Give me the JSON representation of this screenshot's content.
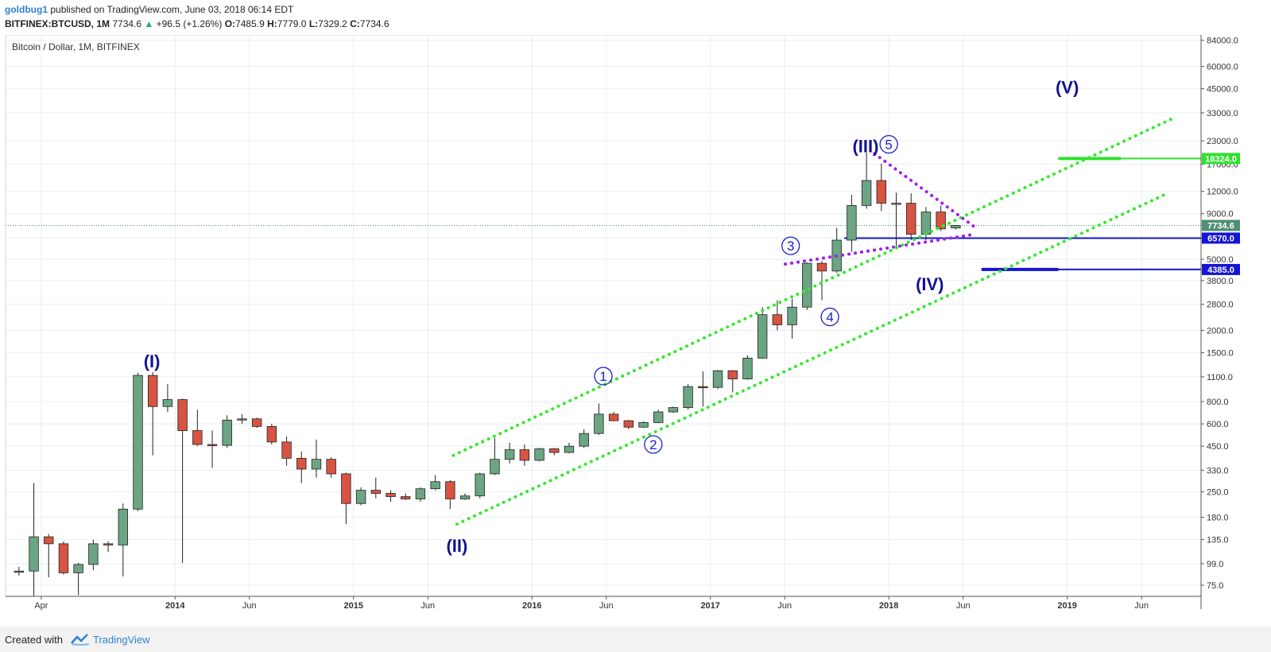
{
  "header": {
    "author": "goldbug1",
    "published": "published on TradingView.com, June 03, 2018 06:14 EDT",
    "symbol": "BITFINEX:BTCUSD, 1M",
    "last": "7734.6",
    "change": "+96.5 (+1.26%)",
    "o_label": "O:",
    "o_value": "7485.9",
    "h_label": "H:",
    "h_value": "7779.0",
    "l_label": "L:",
    "l_value": "7329.2",
    "c_label": "C:",
    "c_value": "7734.6"
  },
  "footer": {
    "created_with": "Created with",
    "brand": "TradingView"
  },
  "chart_data": {
    "type": "candlestick",
    "title": "Bitcoin / Dollar, 1M, BITFINEX",
    "scale": "log",
    "ylim": [
      65,
      90000
    ],
    "yticks": [
      75,
      99,
      135,
      180,
      250,
      330,
      450,
      600,
      800,
      1100,
      1500,
      2000,
      2800,
      3800,
      5000,
      6570,
      9000,
      12000,
      17000,
      23000,
      33000,
      45000,
      60000,
      84000
    ],
    "ytick_labels": [
      "75.0",
      "99.0",
      "135.0",
      "180.0",
      "250.0",
      "330.0",
      "450.0",
      "600.0",
      "800.0",
      "1100.0",
      "1500.0",
      "2000.0",
      "2800.0",
      "3800.0",
      "5000.0",
      "6570.0",
      "9000.0",
      "12000.0",
      "17000.0",
      "23000.0",
      "33000.0",
      "45000.0",
      "60000.0",
      "84000.0"
    ],
    "xrange": [
      2013.05,
      2019.75
    ],
    "xticks": [
      {
        "x": 2013.25,
        "label": "Apr",
        "bold": false
      },
      {
        "x": 2014.0,
        "label": "2014",
        "bold": true
      },
      {
        "x": 2014.4167,
        "label": "Jun",
        "bold": false
      },
      {
        "x": 2015.0,
        "label": "2015",
        "bold": true
      },
      {
        "x": 2015.4167,
        "label": "Jun",
        "bold": false
      },
      {
        "x": 2016.0,
        "label": "2016",
        "bold": true
      },
      {
        "x": 2016.4167,
        "label": "Jun",
        "bold": false
      },
      {
        "x": 2017.0,
        "label": "2017",
        "bold": true
      },
      {
        "x": 2017.4167,
        "label": "Jun",
        "bold": false
      },
      {
        "x": 2018.0,
        "label": "2018",
        "bold": true
      },
      {
        "x": 2018.4167,
        "label": "Jun",
        "bold": false
      },
      {
        "x": 2019.0,
        "label": "2019",
        "bold": true
      },
      {
        "x": 2019.4167,
        "label": "Jun",
        "bold": false
      }
    ],
    "candles": [
      {
        "t": "2013-02",
        "o": 90,
        "h": 95,
        "l": 85,
        "c": 90
      },
      {
        "t": "2013-03",
        "o": 90,
        "h": 280,
        "l": 65,
        "c": 140
      },
      {
        "t": "2013-04",
        "o": 140,
        "h": 145,
        "l": 83,
        "c": 128
      },
      {
        "t": "2013-05",
        "o": 128,
        "h": 132,
        "l": 86,
        "c": 88
      },
      {
        "t": "2013-06",
        "o": 88,
        "h": 100,
        "l": 66,
        "c": 98
      },
      {
        "t": "2013-07",
        "o": 98,
        "h": 135,
        "l": 91,
        "c": 128
      },
      {
        "t": "2013-08",
        "o": 128,
        "h": 132,
        "l": 115,
        "c": 126
      },
      {
        "t": "2013-09",
        "o": 126,
        "h": 215,
        "l": 84,
        "c": 200
      },
      {
        "t": "2013-10",
        "o": 200,
        "h": 1160,
        "l": 195,
        "c": 1120
      },
      {
        "t": "2013-11",
        "o": 1120,
        "h": 1170,
        "l": 400,
        "c": 750
      },
      {
        "t": "2013-12",
        "o": 750,
        "h": 1000,
        "l": 700,
        "c": 820
      },
      {
        "t": "2014-01",
        "o": 820,
        "h": 830,
        "l": 100,
        "c": 550
      },
      {
        "t": "2014-02",
        "o": 550,
        "h": 720,
        "l": 450,
        "c": 460
      },
      {
        "t": "2014-03",
        "o": 460,
        "h": 550,
        "l": 340,
        "c": 455
      },
      {
        "t": "2014-04",
        "o": 455,
        "h": 670,
        "l": 440,
        "c": 630
      },
      {
        "t": "2014-05",
        "o": 630,
        "h": 680,
        "l": 600,
        "c": 640
      },
      {
        "t": "2014-06",
        "o": 640,
        "h": 650,
        "l": 570,
        "c": 580
      },
      {
        "t": "2014-07",
        "o": 580,
        "h": 600,
        "l": 460,
        "c": 475
      },
      {
        "t": "2014-08",
        "o": 475,
        "h": 510,
        "l": 350,
        "c": 385
      },
      {
        "t": "2014-09",
        "o": 385,
        "h": 420,
        "l": 280,
        "c": 335
      },
      {
        "t": "2014-10",
        "o": 335,
        "h": 490,
        "l": 300,
        "c": 380
      },
      {
        "t": "2014-11",
        "o": 380,
        "h": 390,
        "l": 300,
        "c": 315
      },
      {
        "t": "2014-12",
        "o": 315,
        "h": 320,
        "l": 165,
        "c": 215
      },
      {
        "t": "2015-01",
        "o": 215,
        "h": 265,
        "l": 210,
        "c": 255
      },
      {
        "t": "2015-02",
        "o": 255,
        "h": 300,
        "l": 230,
        "c": 245
      },
      {
        "t": "2015-03",
        "o": 245,
        "h": 255,
        "l": 220,
        "c": 235
      },
      {
        "t": "2015-04",
        "o": 235,
        "h": 245,
        "l": 225,
        "c": 228
      },
      {
        "t": "2015-05",
        "o": 228,
        "h": 265,
        "l": 220,
        "c": 260
      },
      {
        "t": "2015-06",
        "o": 260,
        "h": 310,
        "l": 255,
        "c": 285
      },
      {
        "t": "2015-07",
        "o": 285,
        "h": 290,
        "l": 200,
        "c": 228
      },
      {
        "t": "2015-08",
        "o": 228,
        "h": 245,
        "l": 225,
        "c": 237
      },
      {
        "t": "2015-09",
        "o": 237,
        "h": 320,
        "l": 230,
        "c": 315
      },
      {
        "t": "2015-10",
        "o": 315,
        "h": 500,
        "l": 310,
        "c": 380
      },
      {
        "t": "2015-11",
        "o": 380,
        "h": 470,
        "l": 360,
        "c": 430
      },
      {
        "t": "2015-12",
        "o": 430,
        "h": 460,
        "l": 350,
        "c": 375
      },
      {
        "t": "2016-01",
        "o": 375,
        "h": 440,
        "l": 370,
        "c": 435
      },
      {
        "t": "2016-02",
        "o": 435,
        "h": 440,
        "l": 400,
        "c": 415
      },
      {
        "t": "2016-03",
        "o": 415,
        "h": 470,
        "l": 410,
        "c": 450
      },
      {
        "t": "2016-04",
        "o": 450,
        "h": 560,
        "l": 440,
        "c": 530
      },
      {
        "t": "2016-05",
        "o": 530,
        "h": 780,
        "l": 520,
        "c": 680
      },
      {
        "t": "2016-06",
        "o": 680,
        "h": 700,
        "l": 620,
        "c": 625
      },
      {
        "t": "2016-07",
        "o": 625,
        "h": 630,
        "l": 560,
        "c": 575
      },
      {
        "t": "2016-08",
        "o": 575,
        "h": 620,
        "l": 570,
        "c": 610
      },
      {
        "t": "2016-09",
        "o": 610,
        "h": 720,
        "l": 605,
        "c": 700
      },
      {
        "t": "2016-10",
        "o": 700,
        "h": 750,
        "l": 690,
        "c": 740
      },
      {
        "t": "2016-11",
        "o": 740,
        "h": 1000,
        "l": 720,
        "c": 970
      },
      {
        "t": "2016-12",
        "o": 970,
        "h": 1180,
        "l": 750,
        "c": 960
      },
      {
        "t": "2017-01",
        "o": 960,
        "h": 1200,
        "l": 940,
        "c": 1190
      },
      {
        "t": "2017-02",
        "o": 1190,
        "h": 1200,
        "l": 900,
        "c": 1070
      },
      {
        "t": "2017-03",
        "o": 1070,
        "h": 1450,
        "l": 1060,
        "c": 1400
      },
      {
        "t": "2017-04",
        "o": 1400,
        "h": 2700,
        "l": 1390,
        "c": 2450
      },
      {
        "t": "2017-05",
        "o": 2450,
        "h": 2950,
        "l": 2000,
        "c": 2150
      },
      {
        "t": "2017-06",
        "o": 2150,
        "h": 3000,
        "l": 1800,
        "c": 2700
      },
      {
        "t": "2017-07",
        "o": 2700,
        "h": 4800,
        "l": 2600,
        "c": 4750
      },
      {
        "t": "2017-08",
        "o": 4750,
        "h": 4900,
        "l": 2950,
        "c": 4300
      },
      {
        "t": "2017-09",
        "o": 4300,
        "h": 7500,
        "l": 4200,
        "c": 6400
      },
      {
        "t": "2017-10",
        "o": 6400,
        "h": 11500,
        "l": 5500,
        "c": 10000
      },
      {
        "t": "2017-11",
        "o": 10000,
        "h": 19800,
        "l": 9600,
        "c": 13800
      },
      {
        "t": "2017-12",
        "o": 13800,
        "h": 17200,
        "l": 9300,
        "c": 10300
      },
      {
        "t": "2018-01",
        "o": 10300,
        "h": 11800,
        "l": 5900,
        "c": 10300
      },
      {
        "t": "2018-02",
        "o": 10300,
        "h": 11700,
        "l": 6400,
        "c": 6900
      },
      {
        "t": "2018-03",
        "o": 6900,
        "h": 9800,
        "l": 6400,
        "c": 9200
      },
      {
        "t": "2018-04",
        "o": 9200,
        "h": 10000,
        "l": 7200,
        "c": 7400
      },
      {
        "t": "2018-05",
        "o": 7485.9,
        "h": 7779.0,
        "l": 7329.2,
        "c": 7734.6
      }
    ],
    "trendlines": [
      {
        "name": "lower-channel",
        "color": "#34e82e",
        "points": [
          {
            "t": 2015.58,
            "p": 165
          },
          {
            "t": 2019.57,
            "p": 11800
          }
        ]
      },
      {
        "name": "upper-channel",
        "color": "#34e82e",
        "points": [
          {
            "t": 2015.56,
            "p": 400
          },
          {
            "t": 2019.6,
            "p": 31000
          }
        ]
      },
      {
        "name": "triangle-top",
        "color": "#a020f0",
        "points": [
          {
            "t": 2017.92,
            "p": 19500
          },
          {
            "t": 2018.48,
            "p": 7600
          }
        ]
      },
      {
        "name": "triangle-bottom",
        "color": "#a020f0",
        "points": [
          {
            "t": 2017.42,
            "p": 4700
          },
          {
            "t": 2018.48,
            "p": 6900
          }
        ]
      }
    ],
    "hlines": [
      {
        "name": "resistance-18324",
        "value": 18324.0,
        "label": "18324.0",
        "color": "#2ee22e",
        "from": 2018.95,
        "thick_until": 2019.3
      },
      {
        "name": "support-6570",
        "value": 6570.0,
        "label": "6570.0",
        "color": "#1515d6",
        "from": 2017.75
      },
      {
        "name": "support-4385",
        "value": 4385.0,
        "label": "4385.0",
        "color": "#1515d6",
        "from": 2018.52,
        "thick_until": 2018.95
      }
    ],
    "last_price": {
      "value": 7734.6,
      "label": "7734.6",
      "color": "#4f8f73"
    },
    "wave_labels": [
      {
        "text": "(I)",
        "t": 2013.87,
        "p": 1350,
        "circled": false
      },
      {
        "text": "(II)",
        "t": 2015.58,
        "p": 125,
        "circled": false
      },
      {
        "text": "(III)",
        "t": 2017.87,
        "p": 21500,
        "circled": false
      },
      {
        "text": "(IV)",
        "t": 2018.23,
        "p": 3650,
        "circled": false
      },
      {
        "text": "(V)",
        "t": 2019.0,
        "p": 46000,
        "circled": false
      },
      {
        "text": "1",
        "t": 2016.4,
        "p": 1110,
        "circled": true
      },
      {
        "text": "2",
        "t": 2016.68,
        "p": 460,
        "circled": true
      },
      {
        "text": "3",
        "t": 2017.45,
        "p": 5950,
        "circled": true
      },
      {
        "text": "4",
        "t": 2017.67,
        "p": 2380,
        "circled": true
      },
      {
        "text": "5",
        "t": 2018.0,
        "p": 22000,
        "circled": true
      }
    ],
    "colors": {
      "up": "#6ba583",
      "down": "#d75442",
      "wick": "#222222",
      "grid": "#e6eef3",
      "wave": "#13138f"
    }
  }
}
